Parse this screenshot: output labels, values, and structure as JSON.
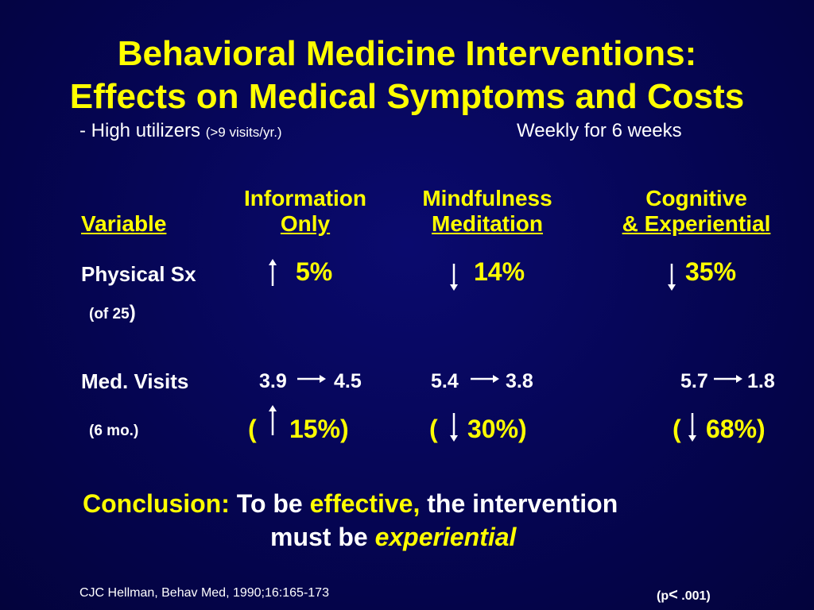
{
  "title": {
    "line1": "Behavioral Medicine Interventions:",
    "line2": "Effects on Medical Symptoms and Costs"
  },
  "subtitle": {
    "prefix": "- High utilizers ",
    "small": "(>9 visits/yr.)",
    "right": "Weekly for 6 weeks"
  },
  "columns": {
    "info": {
      "line1": "Information",
      "line2": "Only"
    },
    "mind": {
      "line1": "Mindfulness",
      "line2": "Meditation"
    },
    "cog": {
      "line1": "Cognitive",
      "line2": "& Experiential"
    }
  },
  "variable_header": "Variable",
  "physical": {
    "label": "Physical Sx",
    "sublabel": "(of 25",
    "sublabel_close": ")",
    "info": {
      "direction": "up",
      "value": "5%"
    },
    "mind": {
      "direction": "down",
      "value": "14%"
    },
    "cog": {
      "direction": "down",
      "value": "35%"
    }
  },
  "visits": {
    "label": "Med. Visits",
    "sublabel": "(6 mo.)",
    "info": {
      "from": "3.9",
      "to": "4.5",
      "direction": "up",
      "change": "15%)"
    },
    "mind": {
      "from": "5.4",
      "to": "3.8",
      "direction": "down",
      "change": "30%)"
    },
    "cog": {
      "from": "5.7",
      "to": "1.8",
      "direction": "down",
      "change": "68%)"
    },
    "open_paren": "("
  },
  "conclusion": {
    "label": "Conclusion:",
    "part1": "To be ",
    "effective": "effective,",
    "part2": " the intervention",
    "line2_prefix": "must be ",
    "experiential": "experiential"
  },
  "footer": {
    "citation": "CJC Hellman, Behav Med, 1990;16:165-173",
    "p_prefix": "(p",
    "p_symbol": "<",
    "p_suffix": " .001)"
  },
  "colors": {
    "background": "#050552",
    "accent": "#ffff00",
    "text": "#ffffff"
  }
}
